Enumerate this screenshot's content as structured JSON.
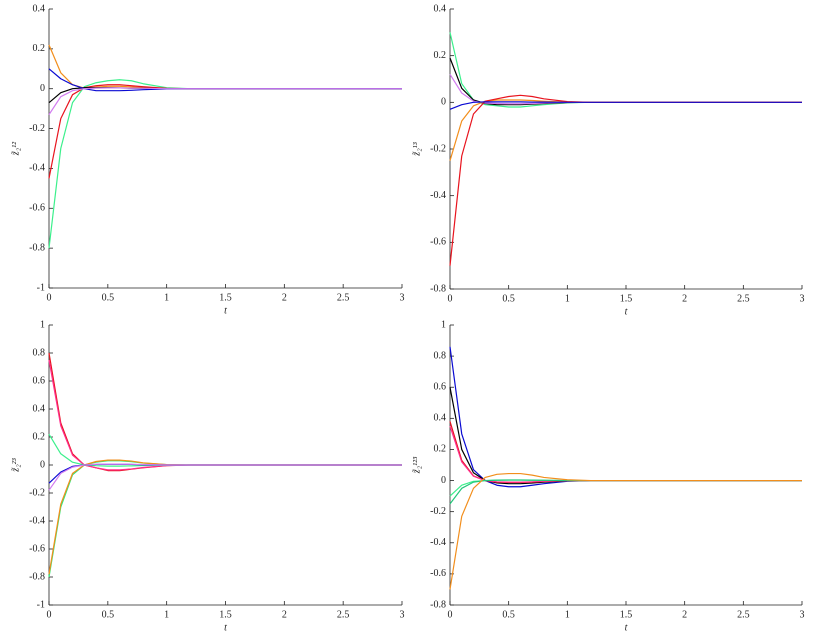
{
  "chart_data": [
    {
      "type": "line",
      "xlabel": "t",
      "ylabel": "z̃₂¹²",
      "x": [
        0,
        0.1,
        0.2,
        0.3,
        0.4,
        0.5,
        0.6,
        0.7,
        0.8,
        1,
        1.2,
        1.5,
        2,
        2.5,
        3
      ],
      "xlim": [
        0,
        3
      ],
      "xticks": [
        0,
        0.5,
        1,
        1.5,
        2,
        2.5,
        3
      ],
      "ylim": [
        -1,
        0.4
      ],
      "yticks": [
        -1,
        -0.8,
        -0.6,
        -0.4,
        -0.2,
        0,
        0.2,
        0.4
      ],
      "series": [
        {
          "color": "#f28e1c",
          "values": [
            0.22,
            0.08,
            0.02,
            0.003,
            0.008,
            0.012,
            0.012,
            0.009,
            0.005,
            0.001,
            0,
            0,
            0,
            0,
            0
          ]
        },
        {
          "color": "#3cf08c",
          "values": [
            -0.8,
            -0.3,
            -0.07,
            0.01,
            0.03,
            0.04,
            0.045,
            0.04,
            0.025,
            0.005,
            0,
            0,
            0,
            0,
            0
          ]
        },
        {
          "color": "#e8141e",
          "values": [
            -0.45,
            -0.15,
            -0.03,
            0.005,
            0.015,
            0.02,
            0.02,
            0.015,
            0.01,
            0.002,
            0,
            0,
            0,
            0,
            0
          ]
        },
        {
          "color": "#000000",
          "values": [
            -0.07,
            -0.02,
            0,
            0.005,
            0.005,
            0.005,
            0.004,
            0.003,
            0.002,
            0,
            0,
            0,
            0,
            0,
            0
          ]
        },
        {
          "color": "#0a0ad2",
          "values": [
            0.1,
            0.05,
            0.02,
            0,
            -0.01,
            -0.01,
            -0.01,
            -0.008,
            -0.005,
            -0.001,
            0,
            0,
            0,
            0,
            0
          ]
        },
        {
          "color": "#d27cf0",
          "values": [
            -0.13,
            -0.04,
            -0.01,
            0,
            0.003,
            0.004,
            0.004,
            0.003,
            0.002,
            0,
            0,
            0,
            0,
            0,
            0
          ]
        }
      ]
    },
    {
      "type": "line",
      "xlabel": "t",
      "ylabel": "z̃₂¹³",
      "x": [
        0,
        0.1,
        0.2,
        0.3,
        0.4,
        0.5,
        0.6,
        0.7,
        0.8,
        1,
        1.2,
        1.5,
        2,
        2.5,
        3
      ],
      "xlim": [
        0,
        3
      ],
      "xticks": [
        0,
        0.5,
        1,
        1.5,
        2,
        2.5,
        3
      ],
      "ylim": [
        -0.8,
        0.4
      ],
      "yticks": [
        -0.8,
        -0.6,
        -0.4,
        -0.2,
        0,
        0.2,
        0.4
      ],
      "series": [
        {
          "color": "#3cf08c",
          "values": [
            0.3,
            0.08,
            0.01,
            -0.01,
            -0.015,
            -0.02,
            -0.02,
            -0.015,
            -0.01,
            -0.002,
            0,
            0,
            0,
            0,
            0
          ]
        },
        {
          "color": "#000000",
          "values": [
            0.19,
            0.06,
            0.01,
            -0.005,
            -0.01,
            -0.01,
            -0.01,
            -0.008,
            -0.005,
            -0.001,
            0,
            0,
            0,
            0,
            0
          ]
        },
        {
          "color": "#d27cf0",
          "values": [
            0.12,
            0.04,
            0.005,
            -0.003,
            -0.005,
            -0.006,
            -0.006,
            -0.005,
            -0.003,
            0,
            0,
            0,
            0,
            0,
            0
          ]
        },
        {
          "color": "#f28e1c",
          "values": [
            -0.25,
            -0.08,
            -0.015,
            0.005,
            0.01,
            0.01,
            0.01,
            0.008,
            0.005,
            0.001,
            0,
            0,
            0,
            0,
            0
          ]
        },
        {
          "color": "#e8141e",
          "values": [
            -0.7,
            -0.23,
            -0.05,
            0.005,
            0.015,
            0.025,
            0.03,
            0.025,
            0.015,
            0.003,
            0,
            0,
            0,
            0,
            0
          ]
        },
        {
          "color": "#0a0ad2",
          "values": [
            -0.03,
            -0.01,
            0,
            0.002,
            0.002,
            0.002,
            0.002,
            0.001,
            0.001,
            0,
            0,
            0,
            0,
            0,
            0
          ]
        }
      ]
    },
    {
      "type": "line",
      "xlabel": "t",
      "ylabel": "z̃₂²³",
      "x": [
        0,
        0.1,
        0.2,
        0.3,
        0.4,
        0.5,
        0.6,
        0.7,
        0.8,
        1,
        1.2,
        1.5,
        2,
        2.5,
        3
      ],
      "xlim": [
        0,
        3
      ],
      "xticks": [
        0,
        0.5,
        1,
        1.5,
        2,
        2.5,
        3
      ],
      "ylim": [
        -1,
        1
      ],
      "yticks": [
        -1,
        -0.8,
        -0.6,
        -0.4,
        -0.2,
        0,
        0.2,
        0.4,
        0.6,
        0.8,
        1
      ],
      "series": [
        {
          "color": "#e8141e",
          "values": [
            0.8,
            0.3,
            0.08,
            0,
            -0.02,
            -0.04,
            -0.04,
            -0.03,
            -0.02,
            -0.005,
            0,
            0,
            0,
            0,
            0
          ]
        },
        {
          "color": "#ff2e8c",
          "values": [
            0.75,
            0.28,
            0.07,
            0,
            -0.02,
            -0.035,
            -0.035,
            -0.028,
            -0.018,
            -0.004,
            0,
            0,
            0,
            0,
            0
          ]
        },
        {
          "color": "#3cf08c",
          "values": [
            0.22,
            0.08,
            0.02,
            0,
            -0.005,
            -0.008,
            -0.008,
            -0.006,
            -0.004,
            -0.001,
            0,
            0,
            0,
            0,
            0
          ]
        },
        {
          "color": "#2ee87a",
          "values": [
            -0.8,
            -0.3,
            -0.07,
            0,
            0.02,
            0.03,
            0.03,
            0.024,
            0.014,
            0.003,
            0,
            0,
            0,
            0,
            0
          ]
        },
        {
          "color": "#f28e1c",
          "values": [
            -0.78,
            -0.28,
            -0.06,
            0,
            0.025,
            0.035,
            0.035,
            0.028,
            0.015,
            0.003,
            0,
            0,
            0,
            0,
            0
          ]
        },
        {
          "color": "#0a0ad2",
          "values": [
            -0.13,
            -0.05,
            -0.01,
            0,
            0.004,
            0.005,
            0.005,
            0.004,
            0.002,
            0,
            0,
            0,
            0,
            0,
            0
          ]
        },
        {
          "color": "#d27cf0",
          "values": [
            -0.18,
            -0.06,
            -0.015,
            0,
            0.005,
            0.006,
            0.006,
            0.005,
            0.003,
            0,
            0,
            0,
            0,
            0,
            0
          ]
        }
      ]
    },
    {
      "type": "line",
      "xlabel": "t",
      "ylabel": "z̃₂¹²³",
      "x": [
        0,
        0.1,
        0.2,
        0.3,
        0.4,
        0.5,
        0.6,
        0.7,
        0.8,
        1,
        1.2,
        1.5,
        2,
        2.5,
        3
      ],
      "xlim": [
        0,
        3
      ],
      "xticks": [
        0,
        0.5,
        1,
        1.5,
        2,
        2.5,
        3
      ],
      "ylim": [
        -0.8,
        1
      ],
      "yticks": [
        -0.8,
        -0.6,
        -0.4,
        -0.2,
        0,
        0.2,
        0.4,
        0.6,
        0.8,
        1
      ],
      "series": [
        {
          "color": "#0a0ad2",
          "values": [
            0.86,
            0.3,
            0.07,
            0,
            -0.03,
            -0.04,
            -0.04,
            -0.03,
            -0.02,
            -0.005,
            0,
            0,
            0,
            0,
            0
          ]
        },
        {
          "color": "#000000",
          "values": [
            0.6,
            0.2,
            0.05,
            0,
            -0.015,
            -0.02,
            -0.02,
            -0.016,
            -0.01,
            -0.002,
            0,
            0,
            0,
            0,
            0
          ]
        },
        {
          "color": "#e8141e",
          "values": [
            0.38,
            0.13,
            0.03,
            0,
            -0.01,
            -0.012,
            -0.012,
            -0.01,
            -0.006,
            -0.001,
            0,
            0,
            0,
            0,
            0
          ]
        },
        {
          "color": "#ff2e8c",
          "values": [
            0.35,
            0.12,
            0.028,
            0,
            -0.008,
            -0.01,
            -0.01,
            -0.008,
            -0.005,
            -0.001,
            0,
            0,
            0,
            0,
            0
          ]
        },
        {
          "color": "#3cf08c",
          "values": [
            -0.1,
            -0.03,
            -0.005,
            0,
            0.002,
            0.003,
            0.003,
            0.002,
            0.001,
            0,
            0,
            0,
            0,
            0,
            0
          ]
        },
        {
          "color": "#22c87a",
          "values": [
            -0.15,
            -0.05,
            -0.01,
            0,
            0.003,
            0.004,
            0.004,
            0.003,
            0.002,
            0,
            0,
            0,
            0,
            0,
            0
          ]
        },
        {
          "color": "#f28e1c",
          "values": [
            -0.7,
            -0.23,
            -0.05,
            0.02,
            0.04,
            0.045,
            0.045,
            0.035,
            0.02,
            0.005,
            0,
            0,
            0,
            0,
            0
          ]
        }
      ]
    }
  ]
}
